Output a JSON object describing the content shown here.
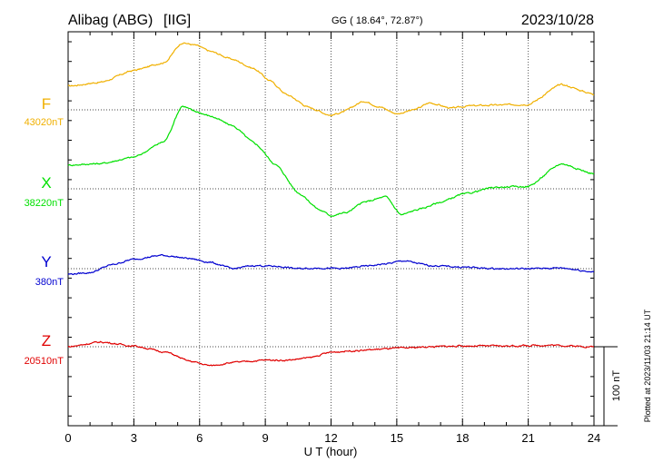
{
  "chart_data": {
    "type": "line",
    "station": "Alibag (ABG)",
    "institute": "[IIG]",
    "coords": "GG ( 18.64°,  72.87°)",
    "date": "2023/10/28",
    "xlabel": "U T (hour)",
    "xlim": [
      0,
      24
    ],
    "x_ticks": [
      "0",
      "3",
      "6",
      "9",
      "12",
      "15",
      "18",
      "21",
      "24"
    ],
    "scale_bar_nT": 100,
    "scale_label": "100 nT",
    "footer": "Plotted at 2023/11/03 21:14 UT",
    "grid": "dotted baselines",
    "x": [
      0,
      1,
      2,
      3,
      4,
      5,
      6,
      7,
      8,
      9,
      10,
      11,
      12,
      13,
      14,
      15,
      16,
      17,
      18,
      19,
      20,
      21,
      22,
      23,
      24
    ],
    "series": [
      {
        "name": "F",
        "baseline_label": "43020nT",
        "color": "#f0b000",
        "values": [
          [
            0,
            30
          ],
          [
            1.5,
            35
          ],
          [
            3,
            50
          ],
          [
            4.4,
            60
          ],
          [
            5.2,
            85
          ],
          [
            5.8,
            82
          ],
          [
            6.5,
            74
          ],
          [
            7.5,
            64
          ],
          [
            8.5,
            52
          ],
          [
            9.2,
            37
          ],
          [
            10,
            19
          ],
          [
            11,
            3
          ],
          [
            12,
            -7
          ],
          [
            12.5,
            -3
          ],
          [
            13.5,
            11
          ],
          [
            14.2,
            4
          ],
          [
            15,
            -5
          ],
          [
            15.8,
            0
          ],
          [
            16.5,
            9
          ],
          [
            17.5,
            2
          ],
          [
            18.3,
            5
          ],
          [
            19.5,
            6
          ],
          [
            21,
            7
          ],
          [
            22.5,
            32
          ],
          [
            24,
            20
          ]
        ]
      },
      {
        "name": "X",
        "baseline_label": "38220nT",
        "color": "#00e000",
        "values": [
          [
            0,
            30
          ],
          [
            1.5,
            32
          ],
          [
            3,
            40
          ],
          [
            4.4,
            60
          ],
          [
            5.2,
            105
          ],
          [
            5.8,
            98
          ],
          [
            6.5,
            92
          ],
          [
            7.5,
            80
          ],
          [
            8.5,
            58
          ],
          [
            9.5,
            30
          ],
          [
            10.5,
            -5
          ],
          [
            11.5,
            -27
          ],
          [
            12,
            -34
          ],
          [
            12.7,
            -30
          ],
          [
            13.5,
            -17
          ],
          [
            14.5,
            -10
          ],
          [
            15.2,
            -33
          ],
          [
            16,
            -26
          ],
          [
            17,
            -17
          ],
          [
            18,
            -7
          ],
          [
            19.5,
            2
          ],
          [
            21,
            3
          ],
          [
            22.5,
            32
          ],
          [
            24,
            19
          ]
        ]
      },
      {
        "name": "Y",
        "baseline_label": "380nT",
        "color": "#0000d0",
        "values": [
          [
            0,
            -7
          ],
          [
            1,
            -5
          ],
          [
            2,
            5
          ],
          [
            3,
            12
          ],
          [
            4.3,
            17
          ],
          [
            5.5,
            13
          ],
          [
            6.5,
            8
          ],
          [
            7.5,
            0
          ],
          [
            8.5,
            4
          ],
          [
            9.5,
            3
          ],
          [
            10.5,
            0
          ],
          [
            11.5,
            1
          ],
          [
            12.5,
            0
          ],
          [
            13.5,
            3
          ],
          [
            14.5,
            6
          ],
          [
            15.3,
            10
          ],
          [
            16.5,
            4
          ],
          [
            18,
            2
          ],
          [
            19.5,
            0
          ],
          [
            21,
            0
          ],
          [
            22.5,
            1
          ],
          [
            24,
            -4
          ]
        ]
      },
      {
        "name": "Z",
        "baseline_label": "20510nT",
        "color": "#e00000",
        "values": [
          [
            0,
            0
          ],
          [
            1.5,
            6
          ],
          [
            3,
            1
          ],
          [
            4.5,
            -7
          ],
          [
            5.5,
            -18
          ],
          [
            6.5,
            -24
          ],
          [
            7.5,
            -20
          ],
          [
            9,
            -17
          ],
          [
            10,
            -17
          ],
          [
            11,
            -14
          ],
          [
            12,
            -7
          ],
          [
            13,
            -5
          ],
          [
            15,
            -2
          ],
          [
            16.5,
            0
          ],
          [
            18,
            1
          ],
          [
            20,
            1
          ],
          [
            22,
            2
          ],
          [
            24,
            0
          ]
        ]
      }
    ]
  }
}
